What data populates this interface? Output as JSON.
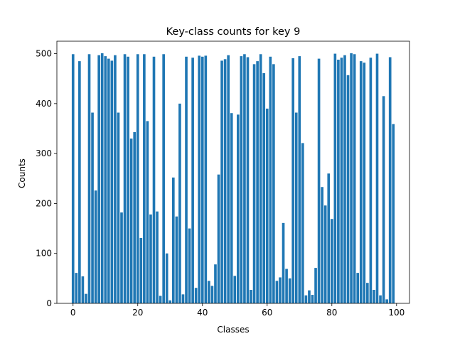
{
  "chart_data": {
    "type": "bar",
    "title": "Key-class counts for key 9",
    "xlabel": "Classes",
    "ylabel": "Counts",
    "xlim": [
      -5,
      104
    ],
    "ylim": [
      0,
      525
    ],
    "xticks": [
      0,
      20,
      40,
      60,
      80,
      100
    ],
    "yticks": [
      0,
      100,
      200,
      300,
      400,
      500
    ],
    "bar_color": "#1f77b4",
    "grid": false,
    "categories": [
      0,
      1,
      2,
      3,
      4,
      5,
      6,
      7,
      8,
      9,
      10,
      11,
      12,
      13,
      14,
      15,
      16,
      17,
      18,
      19,
      20,
      21,
      22,
      23,
      24,
      25,
      26,
      27,
      28,
      29,
      30,
      31,
      32,
      33,
      34,
      35,
      36,
      37,
      38,
      39,
      40,
      41,
      42,
      43,
      44,
      45,
      46,
      47,
      48,
      49,
      50,
      51,
      52,
      53,
      54,
      55,
      56,
      57,
      58,
      59,
      60,
      61,
      62,
      63,
      64,
      65,
      66,
      67,
      68,
      69,
      70,
      71,
      72,
      73,
      74,
      75,
      76,
      77,
      78,
      79,
      80,
      81,
      82,
      83,
      84,
      85,
      86,
      87,
      88,
      89,
      90,
      91,
      92,
      93,
      94,
      95,
      96,
      97,
      98,
      99
    ],
    "values": [
      499,
      61,
      485,
      54,
      19,
      499,
      382,
      226,
      497,
      501,
      495,
      490,
      486,
      497,
      382,
      182,
      499,
      494,
      330,
      343,
      499,
      131,
      499,
      365,
      178,
      494,
      184,
      15,
      499,
      100,
      6,
      252,
      174,
      400,
      18,
      494,
      150,
      492,
      31,
      496,
      494,
      496,
      45,
      35,
      78,
      258,
      486,
      489,
      497,
      381,
      55,
      378,
      495,
      499,
      493,
      27,
      479,
      485,
      499,
      461,
      390,
      494,
      479,
      45,
      52,
      161,
      69,
      50,
      491,
      382,
      495,
      321,
      16,
      26,
      17,
      71,
      490,
      233,
      196,
      260,
      169,
      500,
      488,
      492,
      497,
      457,
      501,
      499,
      61,
      485,
      482,
      41,
      492,
      27,
      500,
      16,
      415,
      8,
      493,
      359
    ]
  }
}
